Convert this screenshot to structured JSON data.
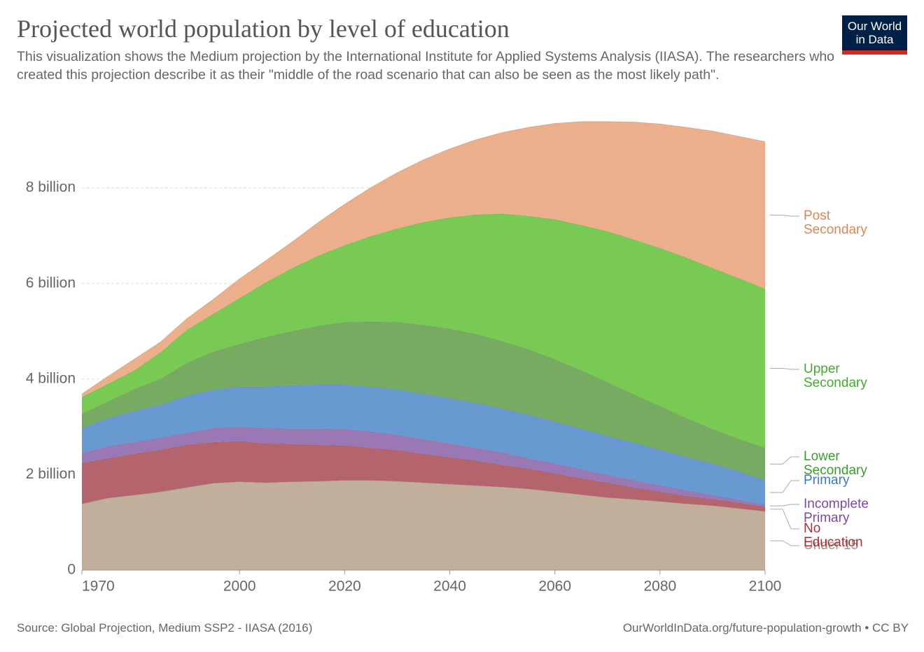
{
  "logo": [
    "Our World",
    "in Data"
  ],
  "chart_data": {
    "type": "stacked-area",
    "title": "Projected world population by level of education",
    "subtitle": "This visualization shows the Medium projection by the International Institute for Applied Systems Analysis (IIASA). The researchers who created this projection describe it as their \"middle of the road scenario that can also be seen as the most likely path\".",
    "source": "Source: Global Projection, Medium SSP2 - IIASA (2016)",
    "credit": "OurWorldInData.org/future-population-growth • CC BY",
    "x": [
      1970,
      1975,
      1980,
      1985,
      1990,
      1995,
      2000,
      2005,
      2010,
      2015,
      2020,
      2025,
      2030,
      2035,
      2040,
      2045,
      2050,
      2055,
      2060,
      2065,
      2070,
      2075,
      2080,
      2085,
      2090,
      2095,
      2100
    ],
    "xlim": [
      1970,
      2100
    ],
    "xticks": [
      1970,
      2000,
      2020,
      2040,
      2060,
      2080,
      2100
    ],
    "ylim": [
      0,
      9.4
    ],
    "yticks": [
      0,
      {
        "value": 2,
        "label": "2 billion"
      },
      {
        "value": 4,
        "label": "4 billion"
      },
      {
        "value": 6,
        "label": "6 billion"
      },
      {
        "value": 8,
        "label": "8 billion"
      }
    ],
    "grid": true,
    "series": [
      {
        "name": "Under 15",
        "color": "#c1af9c",
        "label_color": "#a8937e",
        "values": [
          1.39,
          1.51,
          1.57,
          1.64,
          1.73,
          1.82,
          1.85,
          1.83,
          1.85,
          1.86,
          1.88,
          1.88,
          1.86,
          1.83,
          1.8,
          1.77,
          1.74,
          1.7,
          1.64,
          1.58,
          1.52,
          1.48,
          1.44,
          1.39,
          1.35,
          1.29,
          1.23
        ]
      },
      {
        "name": "No Education",
        "color": "#b4646c",
        "label_color": "#a3303f",
        "values": [
          0.85,
          0.83,
          0.86,
          0.88,
          0.89,
          0.86,
          0.85,
          0.82,
          0.79,
          0.76,
          0.73,
          0.68,
          0.65,
          0.6,
          0.56,
          0.52,
          0.46,
          0.42,
          0.38,
          0.34,
          0.31,
          0.25,
          0.2,
          0.16,
          0.13,
          0.12,
          0.09
        ]
      },
      {
        "name": "Incomplete Primary",
        "color": "#9a78b4",
        "label_color": "#7b4aa3",
        "values": [
          0.21,
          0.25,
          0.25,
          0.25,
          0.25,
          0.29,
          0.3,
          0.32,
          0.32,
          0.34,
          0.34,
          0.34,
          0.32,
          0.31,
          0.29,
          0.27,
          0.26,
          0.22,
          0.21,
          0.19,
          0.16,
          0.15,
          0.13,
          0.12,
          0.09,
          0.06,
          0.05
        ]
      },
      {
        "name": "Primary",
        "color": "#6899d1",
        "label_color": "#3a79c6",
        "values": [
          0.52,
          0.59,
          0.65,
          0.69,
          0.78,
          0.8,
          0.84,
          0.87,
          0.91,
          0.92,
          0.93,
          0.94,
          0.95,
          0.95,
          0.95,
          0.94,
          0.92,
          0.91,
          0.88,
          0.85,
          0.82,
          0.79,
          0.75,
          0.7,
          0.66,
          0.6,
          0.51
        ]
      },
      {
        "name": "Lower Secondary",
        "color": "#78ab62",
        "label_color": "#3c9a2f",
        "values": [
          0.3,
          0.35,
          0.46,
          0.54,
          0.69,
          0.8,
          0.89,
          1.04,
          1.13,
          1.23,
          1.31,
          1.36,
          1.41,
          1.44,
          1.45,
          1.44,
          1.41,
          1.37,
          1.3,
          1.22,
          1.12,
          1.01,
          0.91,
          0.81,
          0.72,
          0.67,
          0.68
        ]
      },
      {
        "name": "Upper Secondary",
        "color": "#79c955",
        "label_color": "#42ab2d",
        "values": [
          0.35,
          0.37,
          0.39,
          0.56,
          0.69,
          0.79,
          0.96,
          1.14,
          1.32,
          1.47,
          1.61,
          1.79,
          1.96,
          2.15,
          2.33,
          2.5,
          2.67,
          2.79,
          2.93,
          3.04,
          3.16,
          3.24,
          3.31,
          3.36,
          3.37,
          3.37,
          3.33
        ]
      },
      {
        "name": "Post Secondary",
        "color": "#ecaf8b",
        "label_color": "#d9875a",
        "values": [
          0.07,
          0.16,
          0.24,
          0.22,
          0.24,
          0.31,
          0.41,
          0.46,
          0.55,
          0.7,
          0.86,
          1.02,
          1.17,
          1.31,
          1.44,
          1.57,
          1.7,
          1.86,
          2.01,
          2.17,
          2.3,
          2.46,
          2.6,
          2.73,
          2.87,
          2.97,
          3.08
        ]
      }
    ]
  }
}
